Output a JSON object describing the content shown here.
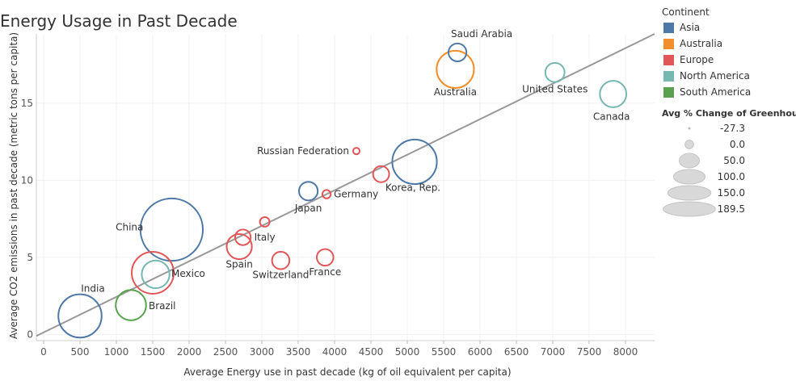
{
  "title": "Energy Usage in Past Decade",
  "chart_data": {
    "type": "scatter",
    "xlabel": "Average Energy use in past decade (kg of oil equivalent per capita)",
    "ylabel": "Average CO2 emissions in past decade (metric tons per capita)",
    "xlim": [
      -100,
      8400
    ],
    "ylim": [
      -0.4,
      19.5
    ],
    "xticks": [
      0,
      500,
      1000,
      1500,
      2000,
      2500,
      3000,
      3500,
      4000,
      4500,
      5000,
      5500,
      6000,
      6500,
      7000,
      7500,
      8000
    ],
    "yticks": [
      0,
      5,
      10,
      15
    ],
    "grid": true,
    "trend_line": {
      "x0": -100,
      "y0": -0.1,
      "x1": 8400,
      "y1": 19.5
    },
    "points": [
      {
        "label": "Saudi Arabia",
        "x": 5690,
        "y": 18.3,
        "continent": "Asia",
        "change": 17
      },
      {
        "label": "Australia",
        "x": 5660,
        "y": 17.2,
        "continent": "Australia",
        "change": 92
      },
      {
        "label": "United States",
        "x": 7030,
        "y": 17.0,
        "continent": "North America",
        "change": 22
      },
      {
        "label": "Canada",
        "x": 7830,
        "y": 15.6,
        "continent": "North America",
        "change": 50
      },
      {
        "label": "Russian Federation",
        "x": 4300,
        "y": 11.9,
        "continent": "Europe",
        "change": -27
      },
      {
        "label": "Korea, Rep.",
        "x": 5100,
        "y": 11.2,
        "continent": "Asia",
        "change": 120
      },
      {
        "label": "",
        "x": 4640,
        "y": 10.4,
        "continent": "Europe",
        "change": 10
      },
      {
        "label": "Japan",
        "x": 3640,
        "y": 9.3,
        "continent": "Asia",
        "change": 20
      },
      {
        "label": "Germany",
        "x": 3890,
        "y": 9.1,
        "continent": "Europe",
        "change": -20
      },
      {
        "label": "",
        "x": 3040,
        "y": 7.3,
        "continent": "Europe",
        "change": -15
      },
      {
        "label": "China",
        "x": 1760,
        "y": 6.8,
        "continent": "Asia",
        "change": 189
      },
      {
        "label": "Italy",
        "x": 2740,
        "y": 6.3,
        "continent": "Europe",
        "change": 8
      },
      {
        "label": "Spain",
        "x": 2690,
        "y": 5.7,
        "continent": "Europe",
        "change": 45
      },
      {
        "label": "France",
        "x": 3870,
        "y": 5.0,
        "continent": "Europe",
        "change": 12
      },
      {
        "label": "Switzerland",
        "x": 3260,
        "y": 4.8,
        "continent": "Europe",
        "change": 15
      },
      {
        "label": "Mexico",
        "x": 1500,
        "y": 4.0,
        "continent": "Europe",
        "change": 110
      },
      {
        "label": "",
        "x": 1540,
        "y": 3.9,
        "continent": "North America",
        "change": 55
      },
      {
        "label": "Brazil",
        "x": 1200,
        "y": 1.9,
        "continent": "South America",
        "change": 65
      },
      {
        "label": "India",
        "x": 500,
        "y": 1.2,
        "continent": "Asia",
        "change": 115
      }
    ]
  },
  "legend": {
    "title": "Continent",
    "items": [
      {
        "name": "Asia",
        "color": "#4e79a7"
      },
      {
        "name": "Australia",
        "color": "#f28e2b"
      },
      {
        "name": "Europe",
        "color": "#e15759"
      },
      {
        "name": "North America",
        "color": "#76b7b2"
      },
      {
        "name": "South America",
        "color": "#59a14f"
      }
    ]
  },
  "size_legend": {
    "title": "Avg % Change of Greenhous...",
    "items": [
      {
        "label": "-27.3",
        "value": -27.3
      },
      {
        "label": "0.0",
        "value": 0
      },
      {
        "label": "50.0",
        "value": 50
      },
      {
        "label": "100.0",
        "value": 100
      },
      {
        "label": "150.0",
        "value": 150
      },
      {
        "label": "189.5",
        "value": 189.5
      }
    ]
  }
}
